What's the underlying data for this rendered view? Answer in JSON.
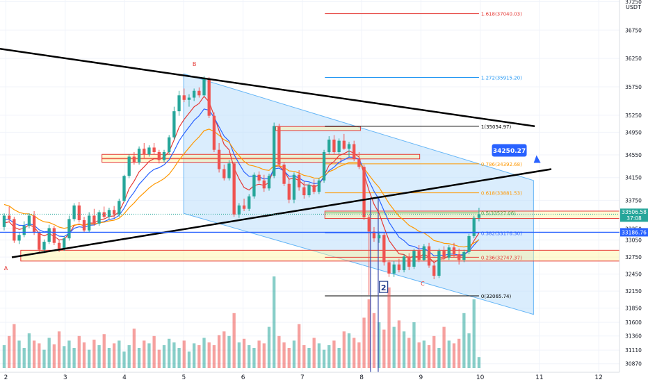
{
  "quote_currency": "USDT",
  "colors": {
    "up": "#26a69a",
    "down": "#ef5350",
    "ema_fast": "#e53935",
    "ema_mid": "#2962ff",
    "ema_slow": "#ff9800",
    "channel_fill": "#bbdefb",
    "trendline": "#000000",
    "zone_fill": "#fff59d",
    "zone_border": "#e53935"
  },
  "chart_data": {
    "type": "candlestick",
    "x_axis": {
      "label": "",
      "ticks": [
        "2",
        "3",
        "4",
        "5",
        "6",
        "7",
        "8",
        "9",
        "10",
        "11",
        "12"
      ],
      "range": [
        1.9,
        12.35
      ]
    },
    "y_axis": {
      "label": "",
      "range": [
        30720,
        37280
      ],
      "scale": "linear",
      "ticks": [
        37250,
        36750,
        36250,
        35750,
        35250,
        34950,
        34550,
        34150,
        33750,
        33250,
        33050,
        32750,
        32450,
        32150,
        31850,
        31600,
        31360,
        31110,
        30870
      ]
    },
    "current_price": {
      "value": "33506.58",
      "countdown": "37:08"
    },
    "marked_levels": [
      {
        "value": 34250.27,
        "label": "34250.27",
        "style": "callout"
      },
      {
        "value": 33186.76,
        "label": "33186.76",
        "style": "tag"
      }
    ],
    "fibonacci": [
      {
        "label": "1.618(37040.03)",
        "value": 37040.03,
        "color": "#e53935"
      },
      {
        "label": "1.272(35915.20)",
        "value": 35915.2,
        "color": "#2196f3"
      },
      {
        "label": "1(35054.97)",
        "value": 35054.97,
        "color": "#000000"
      },
      {
        "label": "0.786(34392.68)",
        "value": 34392.68,
        "color": "#ff9800"
      },
      {
        "label": "0.618(33881.53)",
        "value": 33881.53,
        "color": "#ff9800"
      },
      {
        "label": "0.5(33527.06)",
        "value": 33527.06,
        "color": "#4caf50"
      },
      {
        "label": "0.382(33176.30)",
        "value": 33176.3,
        "color": "#2962ff"
      },
      {
        "label": "0.236(32747.37)",
        "value": 32747.37,
        "color": "#e53935"
      },
      {
        "label": "0(32065.74)",
        "value": 32065.74,
        "color": "#000000"
      }
    ],
    "wave_labels": [
      {
        "text": "A",
        "x": 2.0,
        "y": 32520
      },
      {
        "text": "B",
        "x": 5.18,
        "y": 36120
      },
      {
        "text": "C",
        "x": 9.03,
        "y": 32250
      },
      {
        "text": "2",
        "x": 8.37,
        "y": 32200,
        "boxed": true
      }
    ],
    "trendlines": [
      {
        "name": "upper",
        "from": [
          1.9,
          36420
        ],
        "to": [
          10.92,
          35055
        ]
      },
      {
        "name": "lower",
        "from": [
          2.1,
          32745
        ],
        "to": [
          11.2,
          34300
        ]
      }
    ],
    "channel": {
      "x_start": 5.0,
      "x_end": 10.9,
      "upper_start": 35980,
      "lower_start": 33520,
      "upper_end": 34100,
      "lower_end": 31740
    },
    "zones": [
      {
        "x1": 3.62,
        "x2": 8.98,
        "y_low": 34480,
        "y_high": 34560
      },
      {
        "x1": 3.62,
        "x2": 7.65,
        "y_low": 34420,
        "y_high": 34490
      },
      {
        "x1": 6.55,
        "x2": 7.98,
        "y_low": 34980,
        "y_high": 35050
      },
      {
        "x1": 7.38,
        "x2": 12.35,
        "y_low": 33430,
        "y_high": 33560
      },
      {
        "x1": 2.25,
        "x2": 12.35,
        "y_low": 32680,
        "y_high": 32870
      }
    ],
    "vertical_markers": [
      8.15,
      8.28
    ],
    "candles_ohlc": [
      [
        33280,
        33520,
        33220,
        33480
      ],
      [
        33480,
        33640,
        33360,
        33420
      ],
      [
        33420,
        33460,
        33000,
        33040
      ],
      [
        33040,
        33180,
        32980,
        33140
      ],
      [
        33140,
        33380,
        33100,
        33300
      ],
      [
        33300,
        33520,
        33260,
        33480
      ],
      [
        33480,
        33560,
        33140,
        33180
      ],
      [
        33180,
        33200,
        32820,
        32880
      ],
      [
        32880,
        33060,
        32820,
        33020
      ],
      [
        33020,
        33320,
        32980,
        33260
      ],
      [
        33260,
        33300,
        32960,
        33000
      ],
      [
        33000,
        33050,
        32840,
        32900
      ],
      [
        32900,
        33120,
        32860,
        33080
      ],
      [
        33080,
        33480,
        33040,
        33420
      ],
      [
        33420,
        33700,
        33380,
        33660
      ],
      [
        33660,
        33720,
        33360,
        33400
      ],
      [
        33400,
        33460,
        33180,
        33220
      ],
      [
        33220,
        33540,
        33180,
        33480
      ],
      [
        33480,
        33600,
        33300,
        33340
      ],
      [
        33340,
        33580,
        33300,
        33540
      ],
      [
        33540,
        33640,
        33420,
        33460
      ],
      [
        33460,
        33620,
        33420,
        33580
      ],
      [
        33580,
        33650,
        33440,
        33500
      ],
      [
        33500,
        33780,
        33460,
        33740
      ],
      [
        33740,
        34200,
        33720,
        34180
      ],
      [
        34180,
        34560,
        34140,
        34520
      ],
      [
        34520,
        34600,
        34380,
        34420
      ],
      [
        34420,
        34700,
        34380,
        34660
      ],
      [
        34660,
        34760,
        34500,
        34560
      ],
      [
        34560,
        34720,
        34520,
        34680
      ],
      [
        34680,
        34760,
        34560,
        34600
      ],
      [
        34600,
        34640,
        34400,
        34460
      ],
      [
        34460,
        34640,
        34420,
        34600
      ],
      [
        34600,
        34900,
        34560,
        34860
      ],
      [
        34860,
        35400,
        34820,
        35320
      ],
      [
        35320,
        35680,
        35240,
        35600
      ],
      [
        35600,
        35720,
        35480,
        35520
      ],
      [
        35520,
        35620,
        35400,
        35560
      ],
      [
        35560,
        35720,
        35500,
        35680
      ],
      [
        35680,
        35740,
        35560,
        35600
      ],
      [
        35600,
        35940,
        35580,
        35900
      ],
      [
        35900,
        35920,
        35200,
        35240
      ],
      [
        35240,
        35300,
        34600,
        34640
      ],
      [
        34640,
        34760,
        34240,
        34300
      ],
      [
        34300,
        34380,
        34100,
        34140
      ],
      [
        34140,
        34460,
        34100,
        34400
      ],
      [
        34400,
        34420,
        33460,
        33500
      ],
      [
        33500,
        33700,
        33440,
        33660
      ],
      [
        33660,
        33780,
        33560,
        33600
      ],
      [
        33600,
        33860,
        33560,
        33820
      ],
      [
        33820,
        34240,
        33780,
        34200
      ],
      [
        34200,
        34260,
        34060,
        34100
      ],
      [
        34100,
        34200,
        33900,
        33960
      ],
      [
        33960,
        34220,
        33920,
        34180
      ],
      [
        34180,
        35120,
        34140,
        35060
      ],
      [
        35060,
        35100,
        34340,
        34380
      ],
      [
        34380,
        34420,
        34000,
        34040
      ],
      [
        34040,
        34140,
        33700,
        33760
      ],
      [
        33760,
        34240,
        33700,
        34200
      ],
      [
        34200,
        34280,
        33920,
        33980
      ],
      [
        33980,
        34080,
        33780,
        33840
      ],
      [
        33840,
        34060,
        33800,
        34020
      ],
      [
        34020,
        34120,
        33860,
        33900
      ],
      [
        33900,
        34140,
        33860,
        34100
      ],
      [
        34100,
        34640,
        34060,
        34600
      ],
      [
        34600,
        34880,
        34560,
        34820
      ],
      [
        34820,
        34900,
        34560,
        34600
      ],
      [
        34600,
        34840,
        34560,
        34800
      ],
      [
        34800,
        34920,
        34640,
        34660
      ],
      [
        34660,
        34780,
        34520,
        34740
      ],
      [
        34740,
        34800,
        34440,
        34480
      ],
      [
        34480,
        34600,
        34300,
        34340
      ],
      [
        34340,
        34380,
        33400,
        33450
      ],
      [
        33450,
        33500,
        32080,
        33200
      ],
      [
        33200,
        33280,
        33020,
        33080
      ],
      [
        33080,
        33200,
        33000,
        33140
      ],
      [
        33140,
        33180,
        32600,
        32660
      ],
      [
        32660,
        32700,
        32400,
        32460
      ],
      [
        32460,
        32680,
        32400,
        32620
      ],
      [
        32620,
        32720,
        32480,
        32520
      ],
      [
        32520,
        32800,
        32480,
        32760
      ],
      [
        32760,
        32820,
        32520,
        32580
      ],
      [
        32580,
        32900,
        32540,
        32860
      ],
      [
        32860,
        32960,
        32660,
        32700
      ],
      [
        32700,
        32980,
        32680,
        32940
      ],
      [
        32940,
        33000,
        32560,
        32600
      ],
      [
        32600,
        32660,
        32360,
        32420
      ],
      [
        32420,
        32900,
        32380,
        32860
      ],
      [
        32860,
        32940,
        32700,
        32740
      ],
      [
        32740,
        32960,
        32700,
        32920
      ],
      [
        32920,
        33000,
        32740,
        32800
      ],
      [
        32800,
        32900,
        32620,
        32700
      ],
      [
        32700,
        32880,
        32660,
        32840
      ],
      [
        32840,
        33160,
        32800,
        33120
      ],
      [
        33120,
        33480,
        33080,
        33440
      ],
      [
        33440,
        33620,
        33380,
        33506
      ]
    ],
    "volumes": [
      0.25,
      0.35,
      0.48,
      0.3,
      0.22,
      0.38,
      0.3,
      0.27,
      0.2,
      0.33,
      0.26,
      0.4,
      0.24,
      0.3,
      0.22,
      0.35,
      0.28,
      0.2,
      0.31,
      0.25,
      0.37,
      0.22,
      0.27,
      0.3,
      0.18,
      0.25,
      0.43,
      0.22,
      0.3,
      0.27,
      0.35,
      0.2,
      0.25,
      0.32,
      0.28,
      0.22,
      0.3,
      0.18,
      0.27,
      0.25,
      0.33,
      0.28,
      0.25,
      0.36,
      0.4,
      0.35,
      0.6,
      0.28,
      0.32,
      0.25,
      0.22,
      0.3,
      0.27,
      0.45,
      1.0,
      0.35,
      0.28,
      0.22,
      0.3,
      0.48,
      0.25,
      0.22,
      0.33,
      0.27,
      0.2,
      0.25,
      0.3,
      0.22,
      0.4,
      0.38,
      0.33,
      0.28,
      0.55,
      0.75,
      0.6,
      0.5,
      0.42,
      0.88,
      0.45,
      0.52,
      0.4,
      0.33,
      0.5,
      0.28,
      0.3,
      0.25,
      0.35,
      0.22,
      0.45,
      0.3,
      0.27,
      0.32,
      0.6,
      0.38,
      0.75,
      0.12
    ],
    "legend": "none",
    "grid": true
  }
}
